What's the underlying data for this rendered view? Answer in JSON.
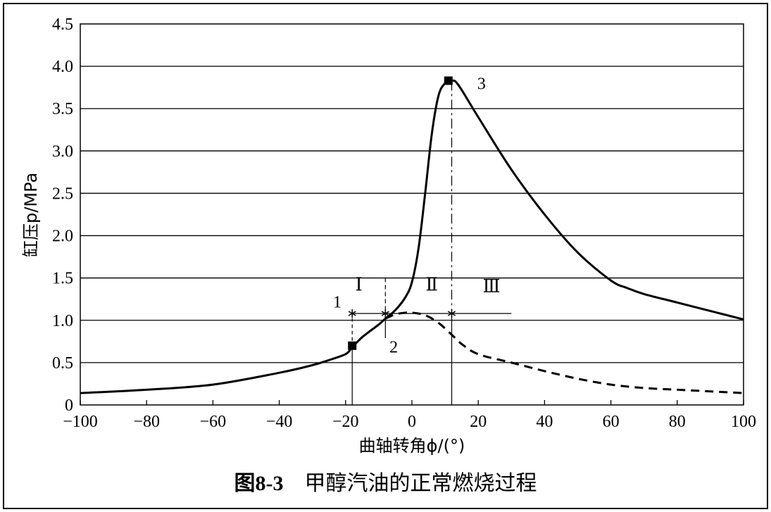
{
  "chart_data": {
    "type": "line",
    "title": "",
    "xlabel": "曲轴转角ϕ/(°)",
    "ylabel": "缸压p/MPa",
    "xlim": [
      -100,
      100
    ],
    "ylim": [
      0,
      4.5
    ],
    "xticks": [
      -100,
      -80,
      -60,
      -40,
      -20,
      0,
      20,
      40,
      60,
      80,
      100
    ],
    "xtick_labels": [
      "−100",
      "−80",
      "−60",
      "−40",
      "−20",
      "0",
      "20",
      "40",
      "60",
      "80",
      "100"
    ],
    "yticks": [
      0,
      0.5,
      1.0,
      1.5,
      2.0,
      2.5,
      3.0,
      3.5,
      4.0,
      4.5
    ],
    "ytick_labels": [
      "0",
      "0.5",
      "1.0",
      "1.5",
      "2.0",
      "2.5",
      "3.0",
      "3.5",
      "4.0",
      "4.5"
    ],
    "grid": "horizontal",
    "series": [
      {
        "style": "solid",
        "x": [
          -100,
          -80,
          -60,
          -40,
          -30,
          -25,
          -20,
          -18,
          -15,
          -10,
          -8,
          -5,
          -2,
          0,
          2,
          4,
          6,
          8,
          10,
          12,
          14,
          20,
          30,
          40,
          50,
          60,
          65,
          70,
          80,
          90,
          100
        ],
        "y": [
          0.14,
          0.18,
          0.24,
          0.38,
          0.47,
          0.53,
          0.6,
          0.68,
          0.8,
          0.95,
          1.02,
          1.12,
          1.27,
          1.45,
          1.85,
          2.5,
          3.2,
          3.65,
          3.8,
          3.83,
          3.78,
          3.4,
          2.78,
          2.25,
          1.8,
          1.47,
          1.38,
          1.31,
          1.21,
          1.11,
          1.01
        ]
      },
      {
        "style": "dashed",
        "x": [
          -8,
          -5,
          -2,
          0,
          4,
          8,
          12,
          15,
          20,
          30,
          40,
          50,
          60,
          70,
          80,
          90,
          100
        ],
        "y": [
          1.02,
          1.07,
          1.09,
          1.09,
          1.06,
          0.97,
          0.83,
          0.72,
          0.6,
          0.5,
          0.4,
          0.31,
          0.24,
          0.2,
          0.18,
          0.16,
          0.14
        ]
      }
    ],
    "markers": [
      {
        "label": "1",
        "x": -18,
        "y": 1.1
      },
      {
        "label": "2",
        "x": -18,
        "y": 0.7
      },
      {
        "label": "3",
        "x": 11,
        "y": 3.83
      }
    ],
    "phase_line": {
      "y": 1.08,
      "x_start": -18,
      "x_end": 30,
      "star_x": [
        -18,
        -8,
        12
      ]
    },
    "phases": [
      {
        "label": "Ⅰ",
        "x": -16,
        "y": 1.35
      },
      {
        "label": "Ⅱ",
        "x": 6,
        "y": 1.35
      },
      {
        "label": "Ⅲ",
        "x": 24,
        "y": 1.33
      }
    ],
    "annotations": [
      {
        "text": "1",
        "x": -22.5,
        "y": 1.15
      },
      {
        "text": "2",
        "x": -5.5,
        "y": 0.62
      },
      {
        "text": "3",
        "x": 21,
        "y": 3.73
      }
    ]
  },
  "caption": {
    "number": "图8-3",
    "text": "甲醇汽油的正常燃烧过程"
  }
}
